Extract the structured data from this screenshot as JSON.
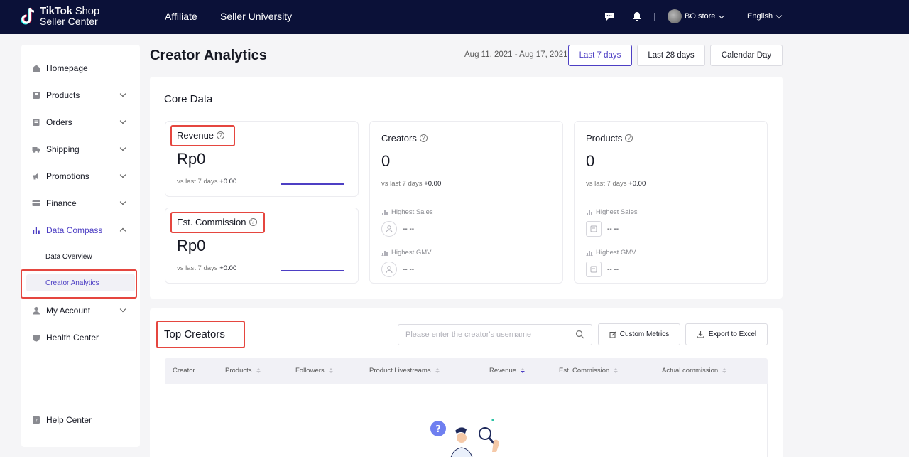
{
  "header": {
    "logo_brand": "TikTok",
    "logo_brand_suffix": " Shop",
    "logo_subtitle": "Seller Center",
    "nav": [
      "Affiliate",
      "Seller University"
    ],
    "store_name": "BO store",
    "language": "English"
  },
  "sidebar": {
    "items": [
      {
        "label": "Homepage",
        "icon": "home-icon"
      },
      {
        "label": "Products",
        "icon": "products-icon"
      },
      {
        "label": "Orders",
        "icon": "orders-icon"
      },
      {
        "label": "Shipping",
        "icon": "truck-icon"
      },
      {
        "label": "Promotions",
        "icon": "megaphone-icon"
      },
      {
        "label": "Finance",
        "icon": "card-icon"
      },
      {
        "label": "Data Compass",
        "icon": "bar-chart-icon"
      },
      {
        "label": "My Account",
        "icon": "user-icon"
      },
      {
        "label": "Health Center",
        "icon": "shield-icon"
      }
    ],
    "sub_items": [
      "Data Overview",
      "Creator Analytics"
    ],
    "help": "Help Center"
  },
  "page": {
    "title": "Creator Analytics",
    "date_range": "Aug 11, 2021 - Aug 17, 2021",
    "range_options": [
      "Last 7 days",
      "Last 28 days",
      "Calendar Day"
    ]
  },
  "core_data": {
    "title": "Core Data",
    "revenue": {
      "title": "Revenue",
      "value": "Rp0",
      "vs_label": "vs last 7 days",
      "vs_value": "+0.00"
    },
    "commission": {
      "title": "Est. Commission",
      "value": "Rp0",
      "vs_label": "vs last 7 days",
      "vs_value": "+0.00"
    },
    "creators": {
      "title": "Creators",
      "value": "0",
      "vs_label": "vs last 7 days",
      "vs_value": "+0.00",
      "highest_sales_label": "Highest Sales",
      "highest_sales_value": "-- --",
      "highest_gmv_label": "Highest GMV",
      "highest_gmv_value": "-- --"
    },
    "products": {
      "title": "Products",
      "value": "0",
      "vs_label": "vs last 7 days",
      "vs_value": "+0.00",
      "highest_sales_label": "Highest Sales",
      "highest_sales_value": "-- --",
      "highest_gmv_label": "Highest GMV",
      "highest_gmv_value": "-- --"
    }
  },
  "top_creators": {
    "title": "Top Creators",
    "search_placeholder": "Please enter the creator's username",
    "custom_metrics": "Custom Metrics",
    "export": "Export to Excel",
    "columns": [
      "Creator",
      "Products",
      "Followers",
      "Product Livestreams",
      "Revenue",
      "Est. Commission",
      "Actual commission"
    ]
  },
  "colors": {
    "header_bg": "#0b1138",
    "accent": "#4d3fc4",
    "highlight": "#e5463f"
  }
}
